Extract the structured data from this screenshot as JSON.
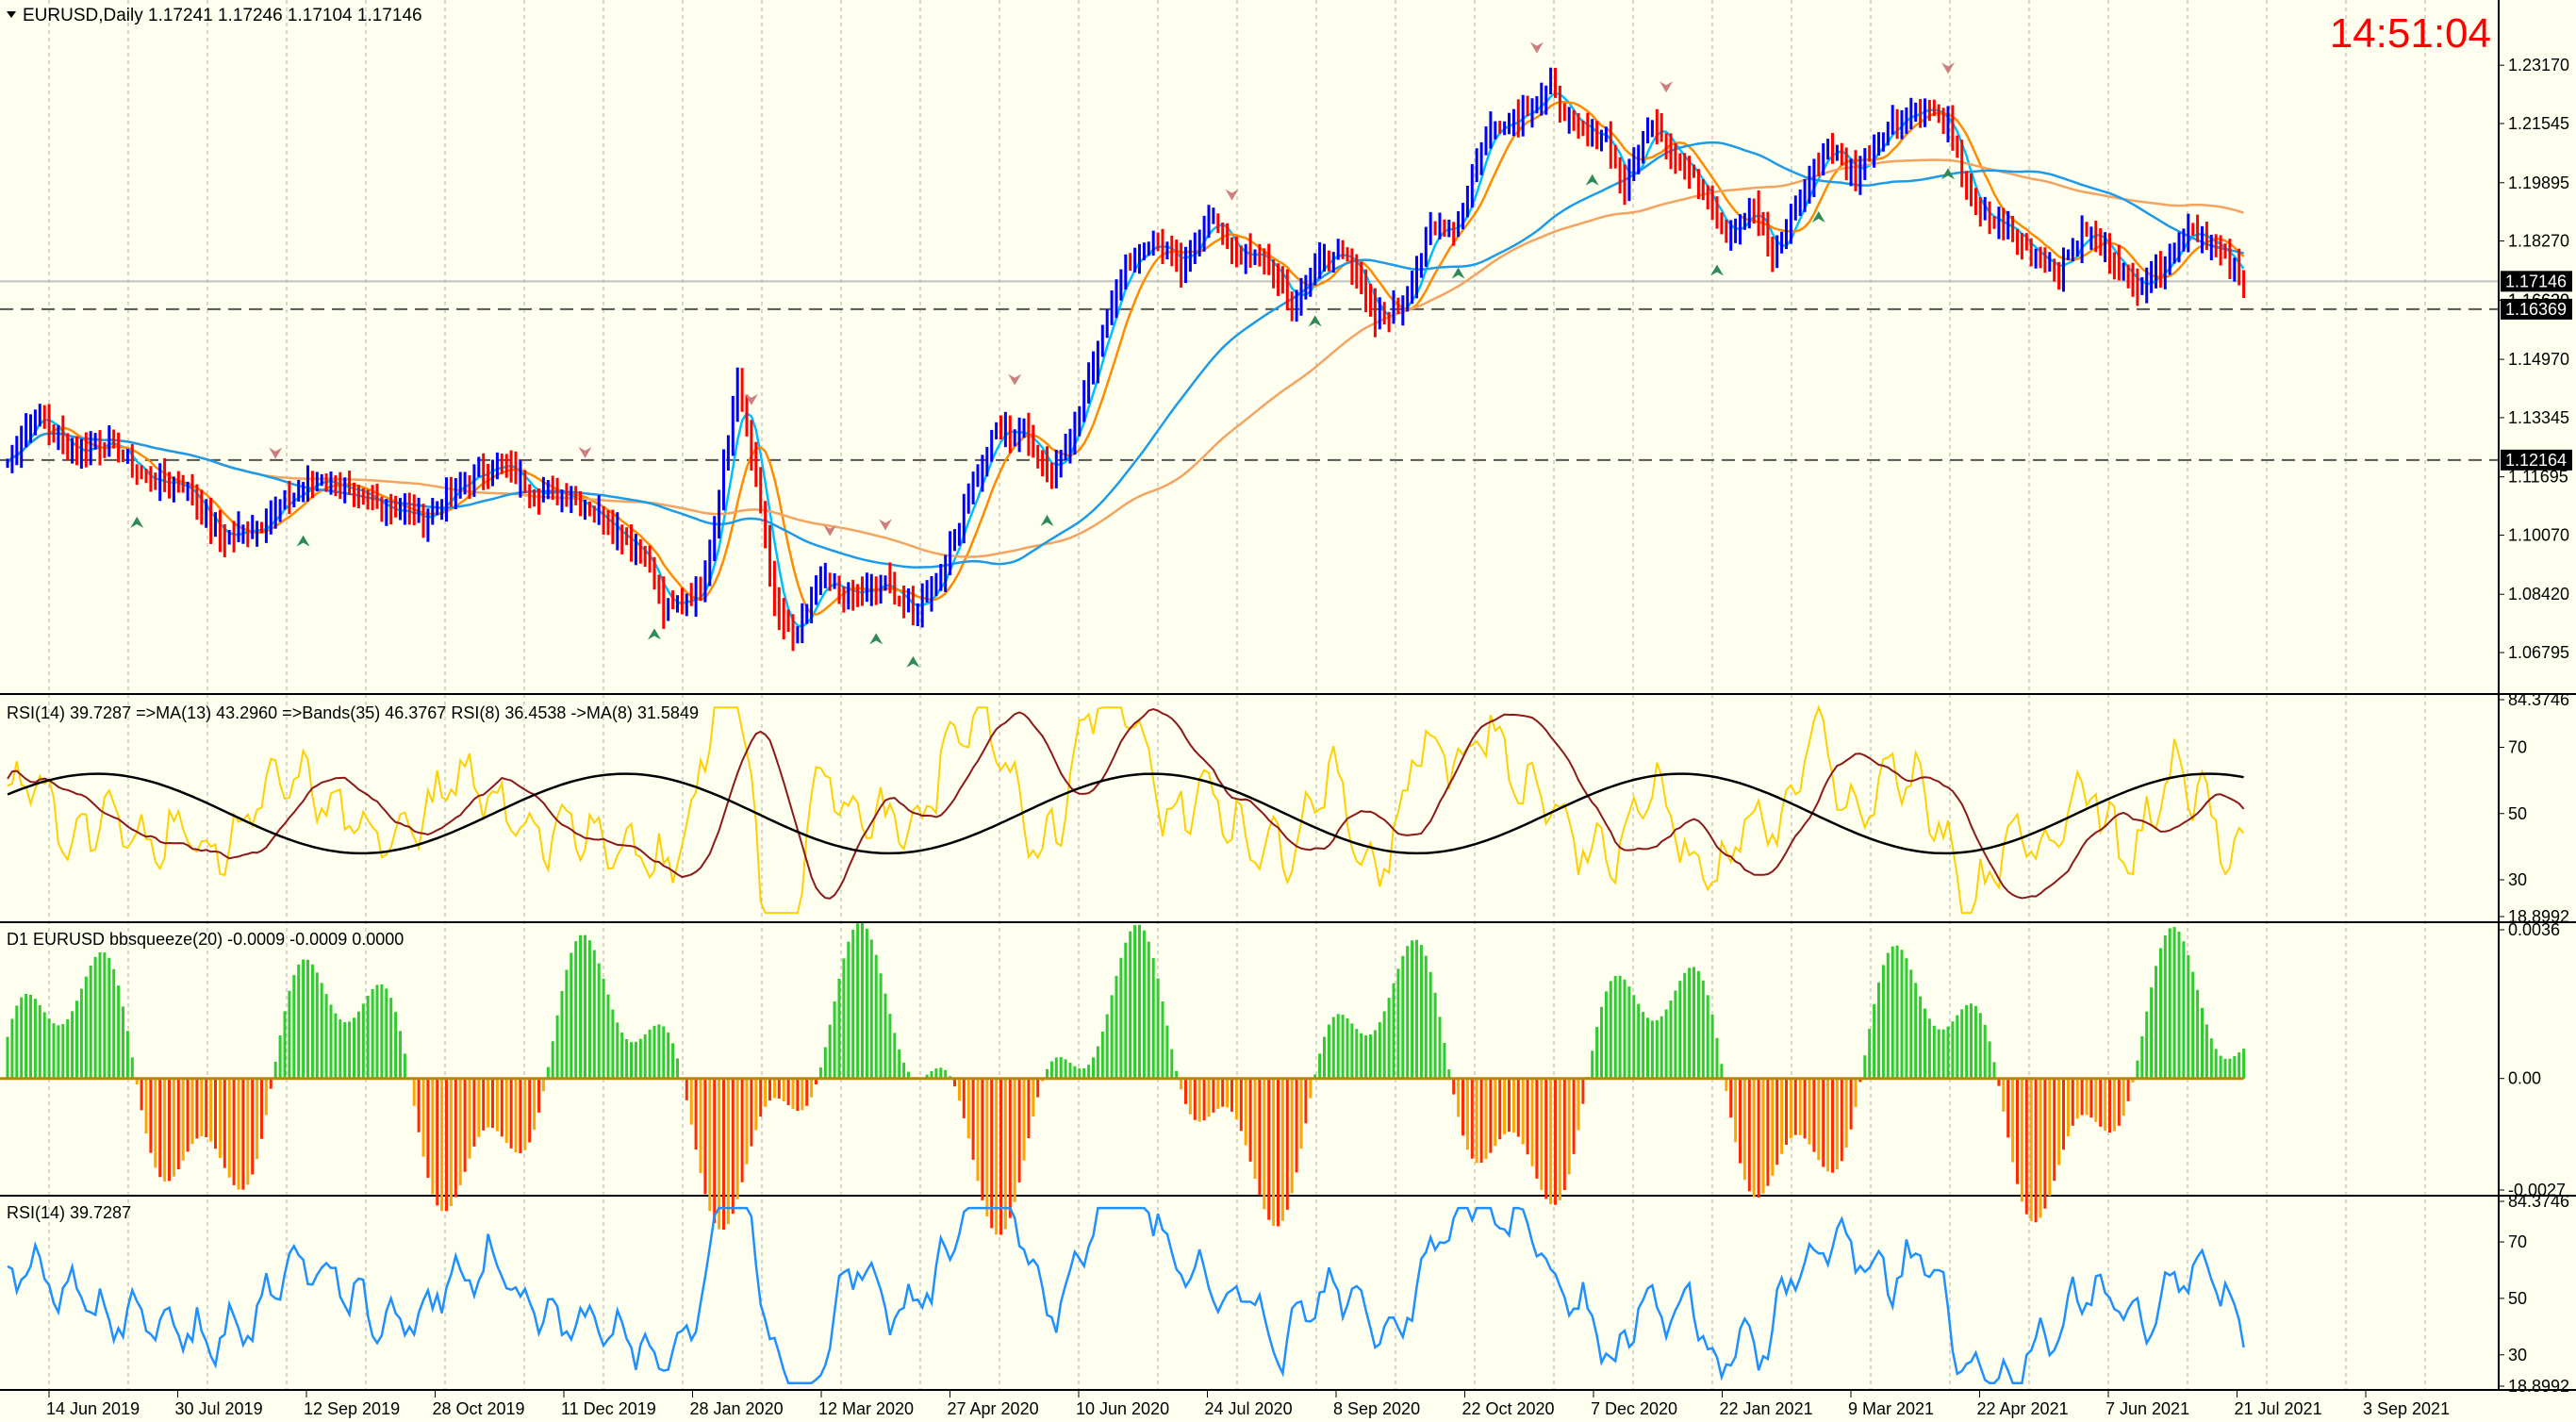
{
  "header": {
    "symbol_line": "EURUSD,Daily  1.17241 1.17246 1.17104 1.17146",
    "clock": "14:51:04"
  },
  "colors": {
    "background": "#FFFFF0",
    "bull": "#0000FF",
    "bear": "#FF0000",
    "ma_fast": "#00BFFF",
    "ma_mid": "#FF8C00",
    "ma_slow_orange": "#F4A460",
    "ma_slow_blue": "#1E9BE8",
    "rsi_fast": "#FFD000",
    "rsi_ma": "#8B1A1A",
    "rsi_bands": "#000000",
    "squeeze_up": "#2ECC2E",
    "squeeze_down_red": "#FF2A00",
    "squeeze_down_orange": "#FFA500",
    "rsi_line": "#1E90FF",
    "clock": "#FF0000"
  },
  "price_levels": {
    "current": "1.17146",
    "bid_alt": "1.16620",
    "line1": "1.16369",
    "line2": "1.12164"
  },
  "panels": {
    "rsi_multi": {
      "label": "RSI(14) 39.7287  =>MA(13) 43.2960  =>Bands(35) 46.3767  RSI(8) 36.4538  ->MA(8) 31.5849",
      "ticks": [
        "84.3746",
        "70",
        "50",
        "30",
        "18.8992"
      ]
    },
    "squeeze": {
      "label": "D1 EURUSD bbsqueeze(20) -0.0009 -0.0009 0.0000",
      "ticks": [
        "0.0036",
        "0.00",
        "-0.0027"
      ]
    },
    "rsi": {
      "label": "RSI(14) 39.7287",
      "ticks": [
        "84.3746",
        "70",
        "50",
        "30",
        "18.8992"
      ]
    }
  },
  "chart_data": {
    "type": "candlestick",
    "symbol": "EURUSD",
    "timeframe": "Daily",
    "x_axis_labels": [
      "14 Jun 2019",
      "30 Jul 2019",
      "12 Sep 2019",
      "28 Oct 2019",
      "11 Dec 2019",
      "28 Jan 2020",
      "12 Mar 2020",
      "27 Apr 2020",
      "10 Jun 2020",
      "24 Jul 2020",
      "8 Sep 2020",
      "22 Oct 2020",
      "7 Dec 2020",
      "22 Jan 2021",
      "9 Mar 2021",
      "22 Apr 2021",
      "7 Jun 2021",
      "21 Jul 2021",
      "3 Sep 2021"
    ],
    "price_axis_labels": [
      "1.23170",
      "1.21545",
      "1.19895",
      "1.18270",
      "1.16620",
      "1.14970",
      "1.13345",
      "1.11695",
      "1.10070",
      "1.08420",
      "1.06795"
    ],
    "ylim": [
      1.0585,
      1.242
    ],
    "close_keypoints": [
      [
        0,
        1.121
      ],
      [
        6,
        1.135
      ],
      [
        14,
        1.124
      ],
      [
        22,
        1.127
      ],
      [
        30,
        1.116
      ],
      [
        38,
        1.115
      ],
      [
        46,
        1.1
      ],
      [
        54,
        1.103
      ],
      [
        60,
        1.11
      ],
      [
        68,
        1.117
      ],
      [
        76,
        1.111
      ],
      [
        84,
        1.108
      ],
      [
        90,
        1.105
      ],
      [
        98,
        1.115
      ],
      [
        106,
        1.121
      ],
      [
        114,
        1.113
      ],
      [
        122,
        1.112
      ],
      [
        130,
        1.104
      ],
      [
        138,
        1.095
      ],
      [
        142,
        1.08
      ],
      [
        150,
        1.085
      ],
      [
        154,
        1.112
      ],
      [
        158,
        1.143
      ],
      [
        162,
        1.117
      ],
      [
        166,
        1.08
      ],
      [
        170,
        1.072
      ],
      [
        176,
        1.087
      ],
      [
        184,
        1.084
      ],
      [
        190,
        1.087
      ],
      [
        196,
        1.079
      ],
      [
        202,
        1.09
      ],
      [
        208,
        1.112
      ],
      [
        214,
        1.13
      ],
      [
        220,
        1.129
      ],
      [
        226,
        1.118
      ],
      [
        232,
        1.135
      ],
      [
        238,
        1.163
      ],
      [
        242,
        1.176
      ],
      [
        248,
        1.183
      ],
      [
        254,
        1.175
      ],
      [
        260,
        1.19
      ],
      [
        266,
        1.179
      ],
      [
        272,
        1.178
      ],
      [
        278,
        1.165
      ],
      [
        284,
        1.177
      ],
      [
        290,
        1.18
      ],
      [
        296,
        1.16
      ],
      [
        302,
        1.165
      ],
      [
        308,
        1.185
      ],
      [
        314,
        1.188
      ],
      [
        320,
        1.213
      ],
      [
        328,
        1.219
      ],
      [
        334,
        1.225
      ],
      [
        340,
        1.213
      ],
      [
        346,
        1.212
      ],
      [
        350,
        1.197
      ],
      [
        356,
        1.217
      ],
      [
        362,
        1.205
      ],
      [
        368,
        1.195
      ],
      [
        372,
        1.185
      ],
      [
        378,
        1.192
      ],
      [
        382,
        1.177
      ],
      [
        388,
        1.195
      ],
      [
        394,
        1.21
      ],
      [
        400,
        1.201
      ],
      [
        404,
        1.21
      ],
      [
        410,
        1.218
      ],
      [
        416,
        1.22
      ],
      [
        420,
        1.214
      ],
      [
        426,
        1.19
      ],
      [
        432,
        1.187
      ],
      [
        438,
        1.18
      ],
      [
        444,
        1.175
      ],
      [
        450,
        1.186
      ],
      [
        456,
        1.178
      ],
      [
        460,
        1.17
      ],
      [
        466,
        1.175
      ],
      [
        472,
        1.187
      ],
      [
        478,
        1.181
      ],
      [
        484,
        1.171
      ]
    ],
    "close_values_note": "",
    "current_price": 1.17146,
    "arrows_up_at": [
      28,
      64,
      140,
      188,
      196,
      225,
      283,
      314,
      343,
      370,
      392,
      420
    ],
    "arrows_down_at": [
      58,
      125,
      161,
      178,
      190,
      218,
      265,
      331,
      359,
      420
    ],
    "rsi_range": [
      18.8992,
      84.3746
    ],
    "squeeze_range": [
      -0.0027,
      0.0036
    ]
  }
}
